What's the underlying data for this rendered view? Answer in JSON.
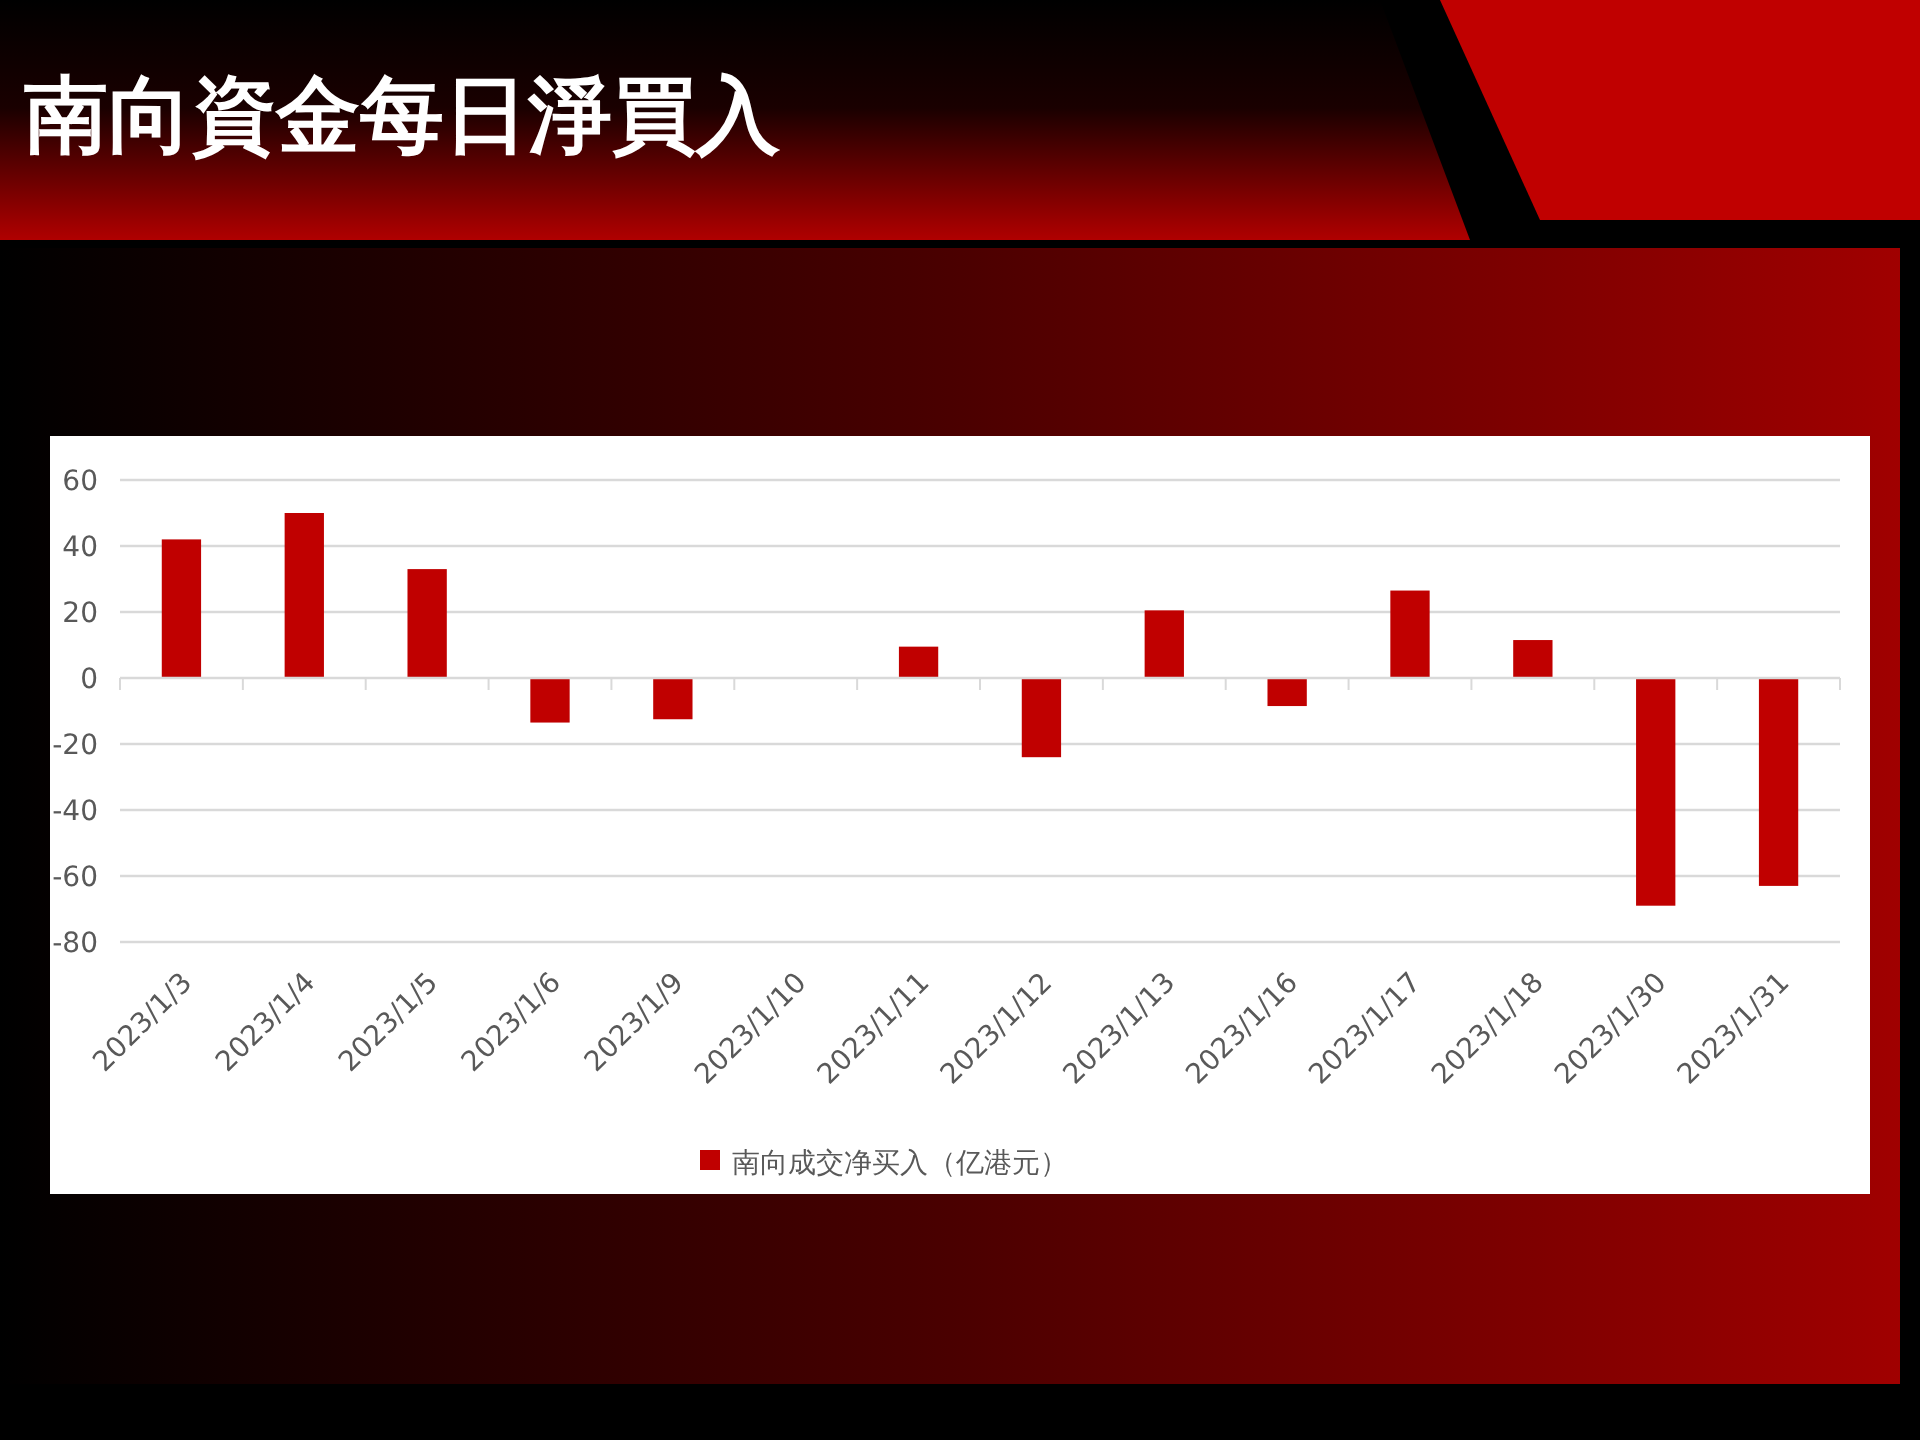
{
  "chart_data": {
    "type": "bar",
    "title": "南向資金每日淨買入",
    "categories": [
      "2023/1/3",
      "2023/1/4",
      "2023/1/5",
      "2023/1/6",
      "2023/1/9",
      "2023/1/10",
      "2023/1/11",
      "2023/1/12",
      "2023/1/13",
      "2023/1/16",
      "2023/1/17",
      "2023/1/18",
      "2023/1/30",
      "2023/1/31"
    ],
    "series": [
      {
        "name": "南向成交净买入（亿港元）",
        "color": "#c00000",
        "values": [
          42,
          50,
          33,
          -13.5,
          -12.5,
          0,
          9.5,
          -24,
          20.5,
          -8.5,
          26.5,
          11.5,
          -69,
          -63
        ]
      }
    ],
    "ylim": [
      -80,
      60
    ],
    "yticks": [
      -80,
      -60,
      -40,
      -20,
      0,
      20,
      40,
      60
    ],
    "grid": "y",
    "legend": "bottom"
  }
}
